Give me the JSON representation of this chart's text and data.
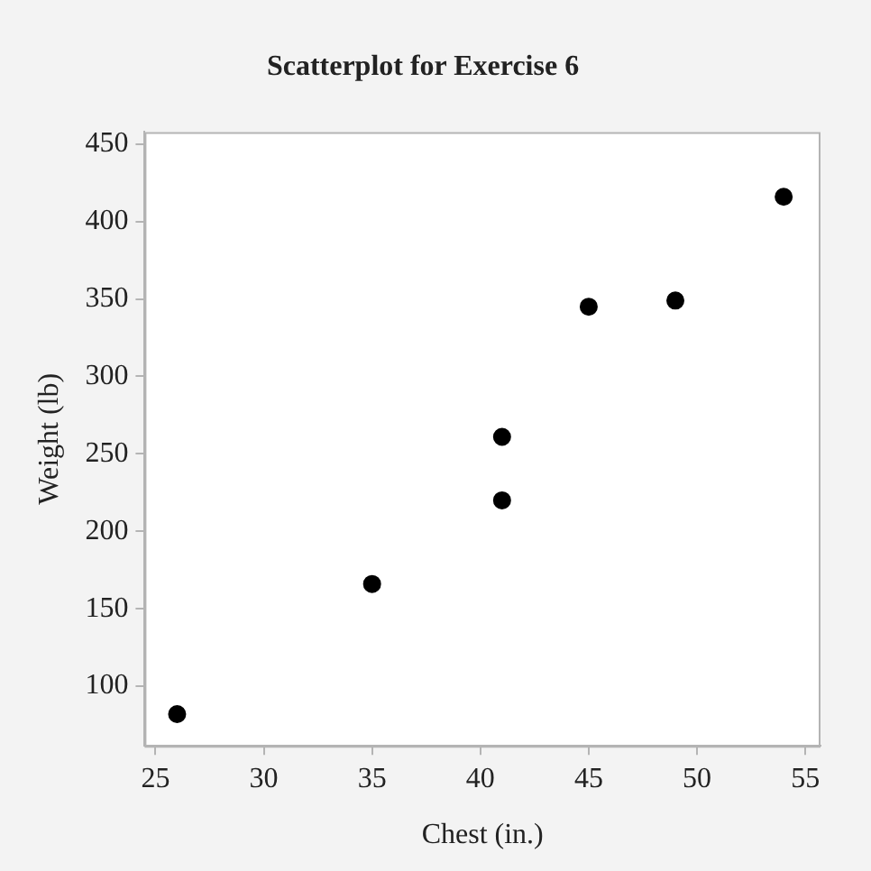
{
  "chart_data": {
    "type": "scatter",
    "title": "Scatterplot for Exercise 6",
    "xlabel": "Chest (in.)",
    "ylabel": "Weight (lb)",
    "x": [
      26,
      35,
      41,
      41,
      45,
      49,
      54
    ],
    "values": [
      82,
      166,
      220,
      261,
      345,
      349,
      416
    ],
    "color": "#000000",
    "xlim": [
      24.5,
      55.7
    ],
    "ylim": [
      61.5,
      457.8
    ],
    "xticks": [
      25,
      30,
      35,
      40,
      45,
      50,
      55
    ],
    "yticks": [
      100,
      150,
      200,
      250,
      300,
      350,
      400,
      450
    ],
    "marker": "circle",
    "grid": false,
    "legend": false
  }
}
